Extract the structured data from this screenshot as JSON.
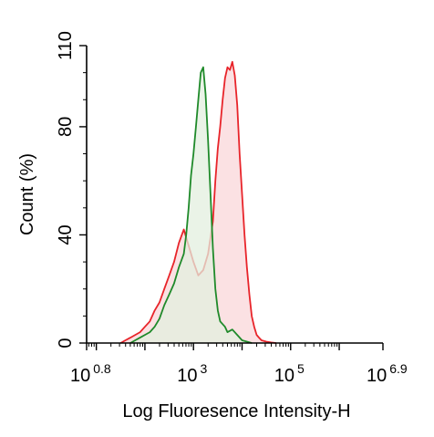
{
  "chart_data": {
    "type": "area",
    "title": "",
    "xlabel": "Log Fluoresence Intensity-H",
    "ylabel": "Count  (%)",
    "x_scale": "log10",
    "xlim_exponent": [
      0.8,
      6.9
    ],
    "ylim": [
      0,
      110
    ],
    "x_ticks": [
      {
        "base": "10",
        "exp": "0.8",
        "exp_value": 0.8
      },
      {
        "base": "10",
        "exp": "3",
        "exp_value": 3
      },
      {
        "base": "10",
        "exp": "5",
        "exp_value": 5
      },
      {
        "base": "10",
        "exp": "6.9",
        "exp_value": 6.9
      }
    ],
    "y_ticks": [
      {
        "label": "0",
        "value": 0
      },
      {
        "label": "40",
        "value": 40
      },
      {
        "label": "80",
        "value": 80
      },
      {
        "label": "110",
        "value": 110
      }
    ],
    "grid": false,
    "legend": "none",
    "series": [
      {
        "color": "#e8242a",
        "fill": "#f9d7da",
        "x_log": [
          1.5,
          1.6,
          1.7,
          1.8,
          1.9,
          2.0,
          2.1,
          2.2,
          2.3,
          2.4,
          2.5,
          2.6,
          2.7,
          2.8,
          2.9,
          3.0,
          3.1,
          3.2,
          3.3,
          3.4,
          3.45,
          3.5,
          3.55,
          3.6,
          3.65,
          3.7,
          3.75,
          3.8,
          3.85,
          3.9,
          3.95,
          4.0,
          4.05,
          4.1,
          4.15,
          4.2,
          4.25,
          4.3,
          4.35,
          4.4,
          4.5,
          4.6,
          4.7
        ],
        "y": [
          0,
          1,
          2,
          3,
          4,
          6,
          8,
          12,
          15,
          20,
          25,
          30,
          37,
          42,
          36,
          30,
          25,
          27,
          33,
          45,
          60,
          72,
          80,
          90,
          98,
          102,
          101,
          104,
          99,
          88,
          70,
          55,
          40,
          28,
          18,
          10,
          6,
          3,
          2,
          1,
          0.5,
          0.2,
          0
        ]
      },
      {
        "color": "#1f8a2a",
        "fill": "#e3efdf",
        "x_log": [
          1.7,
          1.8,
          1.9,
          2.0,
          2.1,
          2.2,
          2.3,
          2.4,
          2.5,
          2.6,
          2.7,
          2.8,
          2.85,
          2.9,
          2.95,
          3.0,
          3.05,
          3.1,
          3.15,
          3.2,
          3.25,
          3.3,
          3.35,
          3.4,
          3.45,
          3.5,
          3.55,
          3.6,
          3.65,
          3.7,
          3.8,
          3.9,
          4.0,
          4.1,
          4.2
        ],
        "y": [
          0,
          1,
          2,
          3,
          4,
          6,
          9,
          14,
          18,
          22,
          28,
          33,
          40,
          50,
          62,
          70,
          80,
          90,
          100,
          102,
          92,
          75,
          55,
          35,
          20,
          12,
          8,
          7,
          6,
          4,
          5,
          3,
          1,
          0.5,
          0
        ]
      }
    ]
  }
}
